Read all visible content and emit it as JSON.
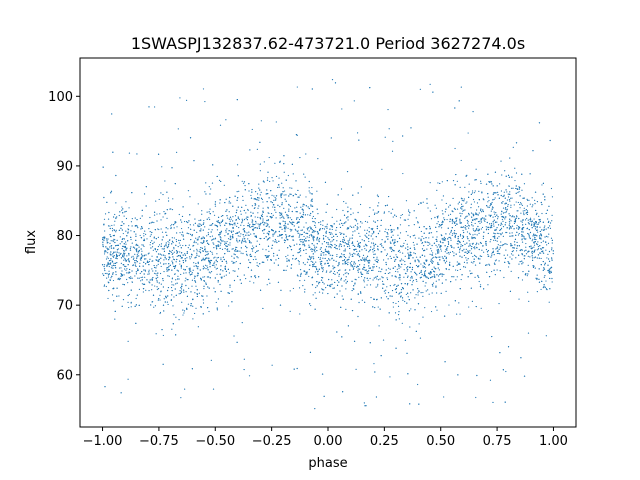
{
  "chart_data": {
    "type": "scatter",
    "title": "1SWASPJ132837.62-473721.0 Period 3627274.0s",
    "xlabel": "phase",
    "ylabel": "flux",
    "xlim": [
      -1.1,
      1.1
    ],
    "ylim": [
      52.5,
      105.5
    ],
    "xticks": [
      -1.0,
      -0.75,
      -0.5,
      -0.25,
      0.0,
      0.25,
      0.5,
      0.75,
      1.0
    ],
    "xtick_labels": [
      "−1.00",
      "−0.75",
      "−0.50",
      "−0.25",
      "0.00",
      "0.25",
      "0.50",
      "0.75",
      "1.00"
    ],
    "yticks": [
      60,
      70,
      80,
      90,
      100
    ],
    "ytick_labels": [
      "60",
      "70",
      "80",
      "90",
      "100"
    ],
    "grid": false,
    "marker_color": "#1f77b4",
    "series": [
      {
        "phase_profile": {
          "x": [
            -1.0,
            -0.9,
            -0.8,
            -0.7,
            -0.6,
            -0.5,
            -0.4,
            -0.3,
            -0.2,
            -0.1,
            0.0,
            0.1,
            0.2,
            0.3,
            0.4,
            0.5,
            0.6,
            0.7,
            0.8,
            0.9,
            1.0
          ],
          "median_flux": [
            77,
            77.5,
            77,
            76.5,
            76,
            78,
            80,
            81,
            82,
            80,
            77,
            77.5,
            77,
            76.5,
            76,
            78,
            80,
            81,
            82,
            80,
            77
          ],
          "spread": [
            4,
            4.5,
            5,
            5,
            5,
            5,
            5,
            5,
            5,
            4.5,
            4,
            4.5,
            5,
            5,
            5,
            5,
            5,
            5,
            5,
            4.5,
            4
          ],
          "flux_range": [
            55,
            102.5
          ]
        }
      }
    ]
  }
}
